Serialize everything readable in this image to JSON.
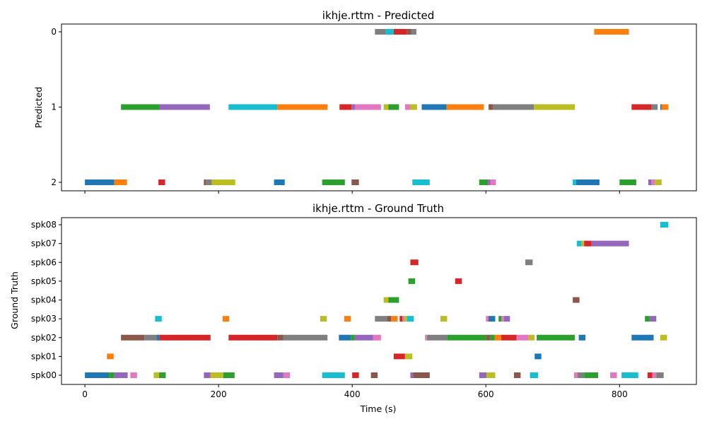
{
  "colors": {
    "palette": [
      "#1f77b4",
      "#ff7f0e",
      "#2ca02c",
      "#d62728",
      "#9467bd",
      "#8c564b",
      "#e377c2",
      "#7f7f7f",
      "#bcbd22",
      "#17becf"
    ]
  },
  "chart_data": [
    {
      "type": "timeline",
      "title": "ikhje.rttm - Predicted",
      "xlabel": "",
      "ylabel": "Predicted",
      "xlim": [
        -35,
        915
      ],
      "x_ticks": [
        0,
        200,
        400,
        600,
        800
      ],
      "show_x_tick_labels": false,
      "categories": [
        "2",
        "1",
        "0"
      ],
      "segments": [
        {
          "row": 0,
          "start": 434,
          "end": 450,
          "color": "#7f7f7f"
        },
        {
          "row": 0,
          "start": 450,
          "end": 462,
          "color": "#17becf"
        },
        {
          "row": 0,
          "start": 462,
          "end": 482,
          "color": "#d62728"
        },
        {
          "row": 0,
          "start": 482,
          "end": 494,
          "color": "#8c564b"
        },
        {
          "row": 0,
          "start": 488,
          "end": 496,
          "color": "#7f7f7f"
        },
        {
          "row": 0,
          "start": 762,
          "end": 814,
          "color": "#ff7f0e"
        },
        {
          "row": 1,
          "start": 54,
          "end": 112,
          "color": "#2ca02c"
        },
        {
          "row": 1,
          "start": 112,
          "end": 187,
          "color": "#9467bd"
        },
        {
          "row": 1,
          "start": 215,
          "end": 288,
          "color": "#17becf"
        },
        {
          "row": 1,
          "start": 288,
          "end": 363,
          "color": "#ff7f0e"
        },
        {
          "row": 1,
          "start": 381,
          "end": 399,
          "color": "#d62728"
        },
        {
          "row": 1,
          "start": 399,
          "end": 404,
          "color": "#9467bd"
        },
        {
          "row": 1,
          "start": 404,
          "end": 443,
          "color": "#e377c2"
        },
        {
          "row": 1,
          "start": 447,
          "end": 454,
          "color": "#bcbd22"
        },
        {
          "row": 1,
          "start": 454,
          "end": 470,
          "color": "#2ca02c"
        },
        {
          "row": 1,
          "start": 479,
          "end": 487,
          "color": "#e377c2"
        },
        {
          "row": 1,
          "start": 487,
          "end": 497,
          "color": "#bcbd22"
        },
        {
          "row": 1,
          "start": 504,
          "end": 541,
          "color": "#1f77b4"
        },
        {
          "row": 1,
          "start": 541,
          "end": 597,
          "color": "#ff7f0e"
        },
        {
          "row": 1,
          "start": 604,
          "end": 612,
          "color": "#8c564b"
        },
        {
          "row": 1,
          "start": 610,
          "end": 672,
          "color": "#7f7f7f"
        },
        {
          "row": 1,
          "start": 672,
          "end": 733,
          "color": "#bcbd22"
        },
        {
          "row": 1,
          "start": 818,
          "end": 848,
          "color": "#d62728"
        },
        {
          "row": 1,
          "start": 848,
          "end": 857,
          "color": "#7f7f7f"
        },
        {
          "row": 1,
          "start": 861,
          "end": 863,
          "color": "#1f77b4"
        },
        {
          "row": 1,
          "start": 863,
          "end": 873,
          "color": "#ff7f0e"
        },
        {
          "row": 2,
          "start": 0,
          "end": 44,
          "color": "#1f77b4"
        },
        {
          "row": 2,
          "start": 44,
          "end": 63,
          "color": "#ff7f0e"
        },
        {
          "row": 2,
          "start": 110,
          "end": 120,
          "color": "#d62728"
        },
        {
          "row": 2,
          "start": 178,
          "end": 181,
          "color": "#8c564b"
        },
        {
          "row": 2,
          "start": 181,
          "end": 190,
          "color": "#7f7f7f"
        },
        {
          "row": 2,
          "start": 190,
          "end": 225,
          "color": "#bcbd22"
        },
        {
          "row": 2,
          "start": 283,
          "end": 299,
          "color": "#1f77b4"
        },
        {
          "row": 2,
          "start": 355,
          "end": 389,
          "color": "#2ca02c"
        },
        {
          "row": 2,
          "start": 399,
          "end": 410,
          "color": "#8c564b"
        },
        {
          "row": 2,
          "start": 490,
          "end": 516,
          "color": "#17becf"
        },
        {
          "row": 2,
          "start": 590,
          "end": 603,
          "color": "#2ca02c"
        },
        {
          "row": 2,
          "start": 603,
          "end": 607,
          "color": "#9467bd"
        },
        {
          "row": 2,
          "start": 607,
          "end": 615,
          "color": "#e377c2"
        },
        {
          "row": 2,
          "start": 730,
          "end": 735,
          "color": "#17becf"
        },
        {
          "row": 2,
          "start": 735,
          "end": 770,
          "color": "#1f77b4"
        },
        {
          "row": 2,
          "start": 800,
          "end": 825,
          "color": "#2ca02c"
        },
        {
          "row": 2,
          "start": 843,
          "end": 848,
          "color": "#9467bd"
        },
        {
          "row": 2,
          "start": 848,
          "end": 853,
          "color": "#e377c2"
        },
        {
          "row": 2,
          "start": 853,
          "end": 863,
          "color": "#bcbd22"
        }
      ]
    },
    {
      "type": "timeline",
      "title": "ikhje.rttm - Ground Truth",
      "xlabel": "Time (s)",
      "ylabel": "Ground Truth",
      "xlim": [
        -35,
        915
      ],
      "x_ticks": [
        0,
        200,
        400,
        600,
        800
      ],
      "show_x_tick_labels": true,
      "categories": [
        "spk00",
        "spk01",
        "spk02",
        "spk03",
        "spk04",
        "spk05",
        "spk06",
        "spk07",
        "spk08"
      ],
      "segments": [
        {
          "row": 0,
          "start": 0,
          "end": 36,
          "color": "#1f77b4"
        },
        {
          "row": 0,
          "start": 36,
          "end": 44,
          "color": "#2ca02c"
        },
        {
          "row": 0,
          "start": 44,
          "end": 64,
          "color": "#9467bd"
        },
        {
          "row": 0,
          "start": 68,
          "end": 78,
          "color": "#e377c2"
        },
        {
          "row": 0,
          "start": 103,
          "end": 111,
          "color": "#bcbd22"
        },
        {
          "row": 0,
          "start": 111,
          "end": 121,
          "color": "#2ca02c"
        },
        {
          "row": 0,
          "start": 178,
          "end": 188,
          "color": "#9467bd"
        },
        {
          "row": 0,
          "start": 188,
          "end": 207,
          "color": "#bcbd22"
        },
        {
          "row": 0,
          "start": 207,
          "end": 224,
          "color": "#2ca02c"
        },
        {
          "row": 0,
          "start": 283,
          "end": 297,
          "color": "#9467bd"
        },
        {
          "row": 0,
          "start": 297,
          "end": 307,
          "color": "#e377c2"
        },
        {
          "row": 0,
          "start": 355,
          "end": 389,
          "color": "#17becf"
        },
        {
          "row": 0,
          "start": 400,
          "end": 410,
          "color": "#d62728"
        },
        {
          "row": 0,
          "start": 428,
          "end": 438,
          "color": "#8c564b"
        },
        {
          "row": 0,
          "start": 487,
          "end": 491,
          "color": "#9467bd"
        },
        {
          "row": 0,
          "start": 491,
          "end": 516,
          "color": "#8c564b"
        },
        {
          "row": 0,
          "start": 590,
          "end": 601,
          "color": "#9467bd"
        },
        {
          "row": 0,
          "start": 601,
          "end": 614,
          "color": "#bcbd22"
        },
        {
          "row": 0,
          "start": 642,
          "end": 652,
          "color": "#8c564b"
        },
        {
          "row": 0,
          "start": 666,
          "end": 678,
          "color": "#17becf"
        },
        {
          "row": 0,
          "start": 732,
          "end": 737,
          "color": "#e377c2"
        },
        {
          "row": 0,
          "start": 737,
          "end": 747,
          "color": "#7f7f7f"
        },
        {
          "row": 0,
          "start": 747,
          "end": 768,
          "color": "#2ca02c"
        },
        {
          "row": 0,
          "start": 786,
          "end": 796,
          "color": "#e377c2"
        },
        {
          "row": 0,
          "start": 803,
          "end": 828,
          "color": "#17becf"
        },
        {
          "row": 0,
          "start": 842,
          "end": 849,
          "color": "#d62728"
        },
        {
          "row": 0,
          "start": 849,
          "end": 855,
          "color": "#e377c2"
        },
        {
          "row": 0,
          "start": 855,
          "end": 866,
          "color": "#7f7f7f"
        },
        {
          "row": 1,
          "start": 33,
          "end": 43,
          "color": "#ff7f0e"
        },
        {
          "row": 1,
          "start": 462,
          "end": 479,
          "color": "#d62728"
        },
        {
          "row": 1,
          "start": 479,
          "end": 490,
          "color": "#bcbd22"
        },
        {
          "row": 1,
          "start": 673,
          "end": 683,
          "color": "#1f77b4"
        },
        {
          "row": 2,
          "start": 54,
          "end": 89,
          "color": "#8c564b"
        },
        {
          "row": 2,
          "start": 89,
          "end": 107,
          "color": "#7f7f7f"
        },
        {
          "row": 2,
          "start": 107,
          "end": 112,
          "color": "#1f77b4"
        },
        {
          "row": 2,
          "start": 112,
          "end": 188,
          "color": "#d62728"
        },
        {
          "row": 2,
          "start": 215,
          "end": 288,
          "color": "#d62728"
        },
        {
          "row": 2,
          "start": 288,
          "end": 297,
          "color": "#8c564b"
        },
        {
          "row": 2,
          "start": 297,
          "end": 363,
          "color": "#7f7f7f"
        },
        {
          "row": 2,
          "start": 380,
          "end": 398,
          "color": "#1f77b4"
        },
        {
          "row": 2,
          "start": 398,
          "end": 403,
          "color": "#2ca02c"
        },
        {
          "row": 2,
          "start": 403,
          "end": 431,
          "color": "#9467bd"
        },
        {
          "row": 2,
          "start": 431,
          "end": 443,
          "color": "#e377c2"
        },
        {
          "row": 2,
          "start": 509,
          "end": 512,
          "color": "#e377c2"
        },
        {
          "row": 2,
          "start": 512,
          "end": 542,
          "color": "#7f7f7f"
        },
        {
          "row": 2,
          "start": 542,
          "end": 600,
          "color": "#2ca02c"
        },
        {
          "row": 2,
          "start": 600,
          "end": 606,
          "color": "#8c564b"
        },
        {
          "row": 2,
          "start": 606,
          "end": 613,
          "color": "#2ca02c"
        },
        {
          "row": 2,
          "start": 613,
          "end": 623,
          "color": "#ff7f0e"
        },
        {
          "row": 2,
          "start": 623,
          "end": 646,
          "color": "#d62728"
        },
        {
          "row": 2,
          "start": 646,
          "end": 664,
          "color": "#e377c2"
        },
        {
          "row": 2,
          "start": 664,
          "end": 673,
          "color": "#bcbd22"
        },
        {
          "row": 2,
          "start": 676,
          "end": 733,
          "color": "#2ca02c"
        },
        {
          "row": 2,
          "start": 739,
          "end": 749,
          "color": "#1f77b4"
        },
        {
          "row": 2,
          "start": 818,
          "end": 851,
          "color": "#1f77b4"
        },
        {
          "row": 2,
          "start": 861,
          "end": 871,
          "color": "#bcbd22"
        },
        {
          "row": 3,
          "start": 105,
          "end": 115,
          "color": "#17becf"
        },
        {
          "row": 3,
          "start": 206,
          "end": 216,
          "color": "#ff7f0e"
        },
        {
          "row": 3,
          "start": 352,
          "end": 362,
          "color": "#bcbd22"
        },
        {
          "row": 3,
          "start": 388,
          "end": 398,
          "color": "#ff7f0e"
        },
        {
          "row": 3,
          "start": 434,
          "end": 452,
          "color": "#7f7f7f"
        },
        {
          "row": 3,
          "start": 452,
          "end": 458,
          "color": "#8c564b"
        },
        {
          "row": 3,
          "start": 458,
          "end": 468,
          "color": "#ff7f0e"
        },
        {
          "row": 3,
          "start": 471,
          "end": 475,
          "color": "#d62728"
        },
        {
          "row": 3,
          "start": 475,
          "end": 478,
          "color": "#e377c2"
        },
        {
          "row": 3,
          "start": 478,
          "end": 482,
          "color": "#bcbd22"
        },
        {
          "row": 3,
          "start": 482,
          "end": 492,
          "color": "#17becf"
        },
        {
          "row": 3,
          "start": 532,
          "end": 542,
          "color": "#bcbd22"
        },
        {
          "row": 3,
          "start": 600,
          "end": 604,
          "color": "#e377c2"
        },
        {
          "row": 3,
          "start": 604,
          "end": 614,
          "color": "#1f77b4"
        },
        {
          "row": 3,
          "start": 619,
          "end": 623,
          "color": "#2ca02c"
        },
        {
          "row": 3,
          "start": 623,
          "end": 627,
          "color": "#e377c2"
        },
        {
          "row": 3,
          "start": 627,
          "end": 636,
          "color": "#9467bd"
        },
        {
          "row": 3,
          "start": 838,
          "end": 845,
          "color": "#2ca02c"
        },
        {
          "row": 3,
          "start": 845,
          "end": 855,
          "color": "#9467bd"
        },
        {
          "row": 4,
          "start": 447,
          "end": 454,
          "color": "#bcbd22"
        },
        {
          "row": 4,
          "start": 454,
          "end": 470,
          "color": "#2ca02c"
        },
        {
          "row": 4,
          "start": 730,
          "end": 740,
          "color": "#8c564b"
        },
        {
          "row": 5,
          "start": 484,
          "end": 494,
          "color": "#2ca02c"
        },
        {
          "row": 5,
          "start": 554,
          "end": 564,
          "color": "#d62728"
        },
        {
          "row": 6,
          "start": 487,
          "end": 499,
          "color": "#d62728"
        },
        {
          "row": 6,
          "start": 659,
          "end": 670,
          "color": "#7f7f7f"
        },
        {
          "row": 7,
          "start": 736,
          "end": 743,
          "color": "#17becf"
        },
        {
          "row": 7,
          "start": 743,
          "end": 747,
          "color": "#bcbd22"
        },
        {
          "row": 7,
          "start": 747,
          "end": 758,
          "color": "#d62728"
        },
        {
          "row": 7,
          "start": 758,
          "end": 814,
          "color": "#9467bd"
        },
        {
          "row": 8,
          "start": 861,
          "end": 873,
          "color": "#17becf"
        }
      ]
    }
  ]
}
